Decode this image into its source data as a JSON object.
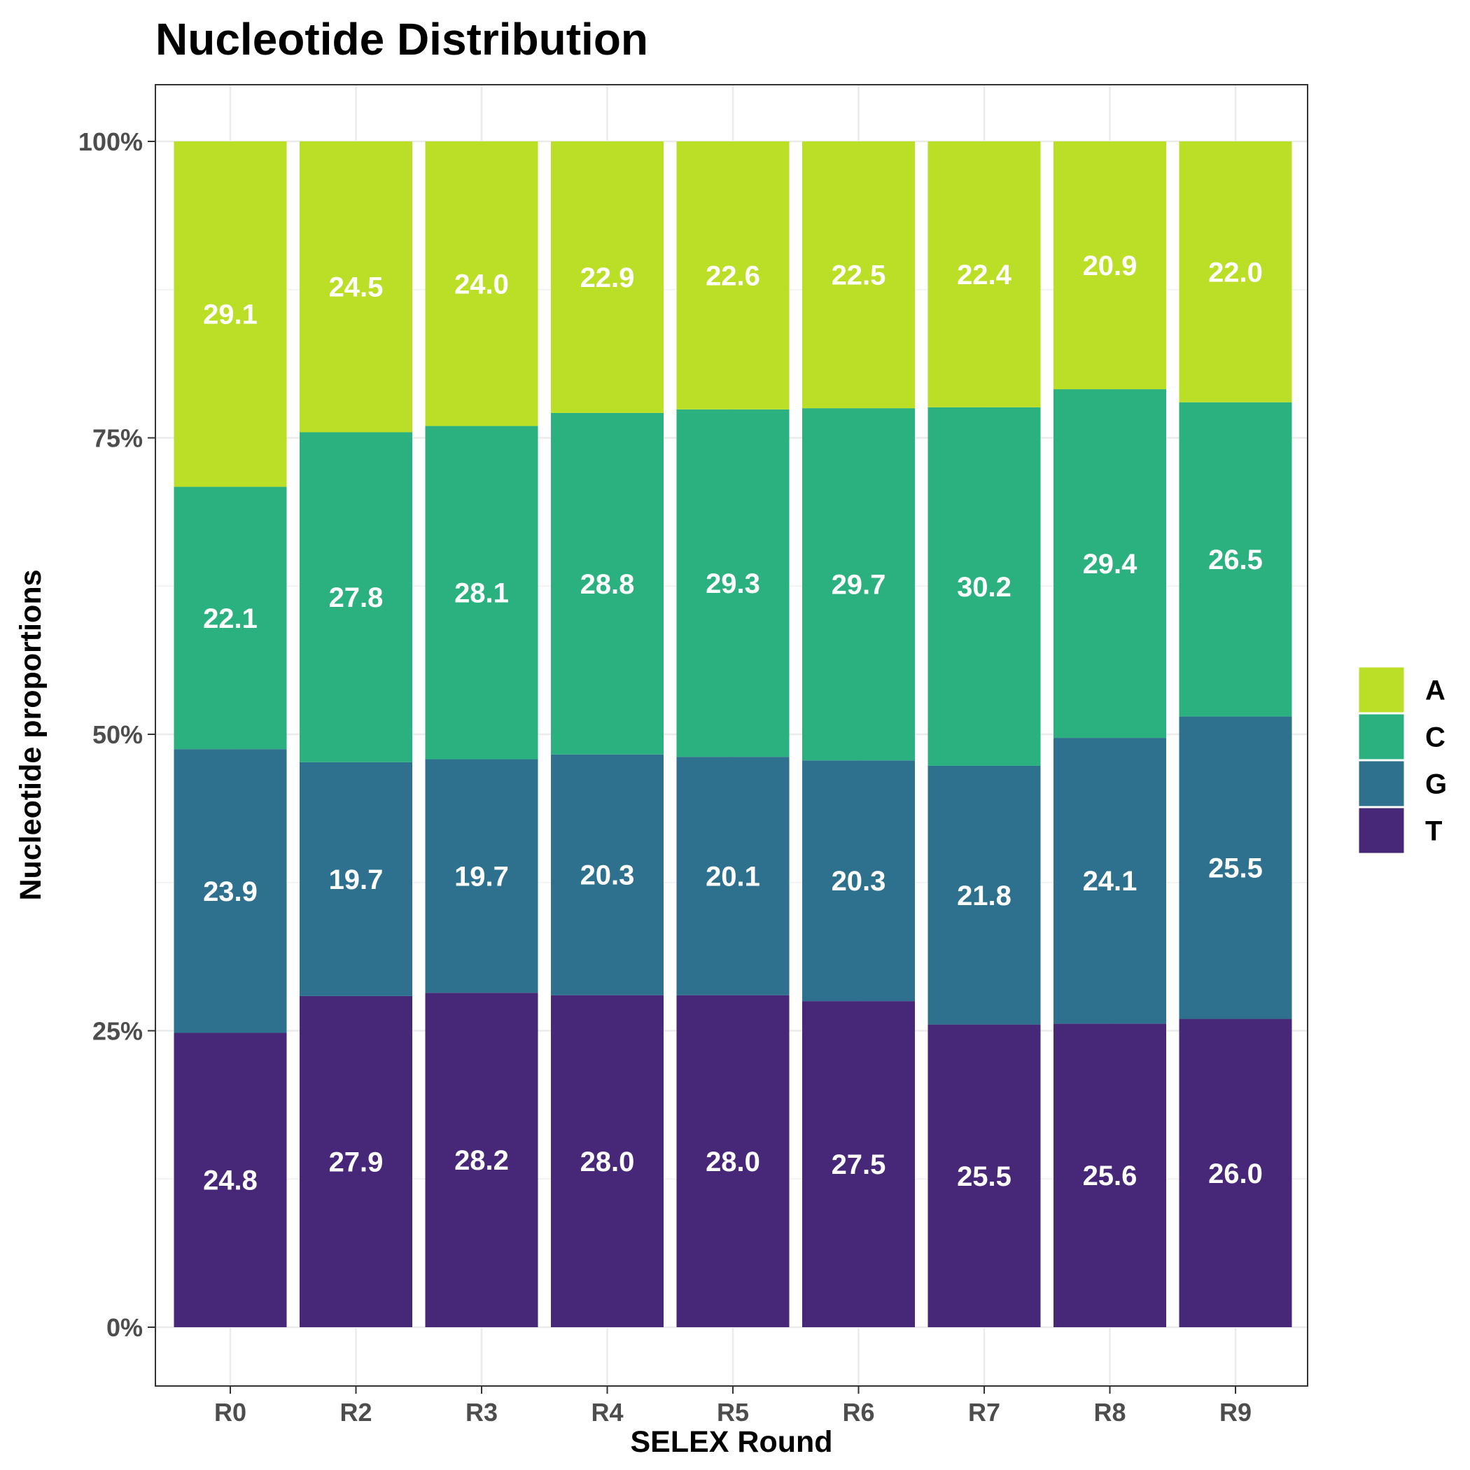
{
  "chart_data": {
    "type": "bar",
    "stacked": true,
    "title": "Nucleotide Distribution",
    "xlabel": "SELEX Round",
    "ylabel": "Nucleotide proportions",
    "ylim": [
      0,
      100
    ],
    "yticks": [
      0,
      25,
      50,
      75,
      100
    ],
    "ytick_labels": [
      "0%",
      "25%",
      "50%",
      "75%",
      "100%"
    ],
    "grid": true,
    "legend_position": "right",
    "categories": [
      "R0",
      "R2",
      "R3",
      "R4",
      "R5",
      "R6",
      "R7",
      "R8",
      "R9"
    ],
    "series": [
      {
        "name": "T",
        "color": "#472777",
        "values": [
          24.8,
          27.9,
          28.2,
          28.0,
          28.0,
          27.5,
          25.5,
          25.6,
          26.0
        ]
      },
      {
        "name": "G",
        "color": "#2e718e",
        "values": [
          23.9,
          19.7,
          19.7,
          20.3,
          20.1,
          20.3,
          21.8,
          24.1,
          25.5
        ]
      },
      {
        "name": "C",
        "color": "#2bb07f",
        "values": [
          22.1,
          27.8,
          28.1,
          28.8,
          29.3,
          29.7,
          30.2,
          29.4,
          26.5
        ]
      },
      {
        "name": "A",
        "color": "#bbdf27",
        "values": [
          29.1,
          24.5,
          24.0,
          22.9,
          22.6,
          22.5,
          22.4,
          20.9,
          22.0
        ]
      }
    ],
    "legend_order": [
      "A",
      "C",
      "G",
      "T"
    ]
  }
}
